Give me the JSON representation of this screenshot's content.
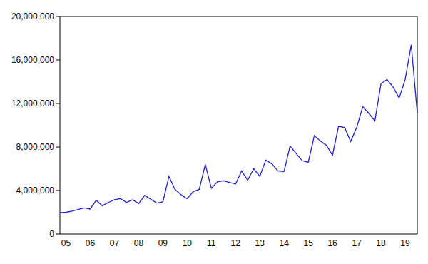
{
  "chart_data": {
    "type": "line",
    "categories": [
      null,
      "05",
      null,
      null,
      null,
      "06",
      null,
      null,
      null,
      "07",
      null,
      null,
      null,
      "08",
      null,
      null,
      null,
      "09",
      null,
      null,
      null,
      "10",
      null,
      null,
      null,
      "11",
      null,
      null,
      null,
      "12",
      null,
      null,
      null,
      "13",
      null,
      null,
      null,
      "14",
      null,
      null,
      null,
      "15",
      null,
      null,
      null,
      "16",
      null,
      null,
      null,
      "17",
      null,
      null,
      null,
      "18",
      null,
      null,
      null,
      "19",
      null,
      null
    ],
    "values": [
      1950000,
      2000000,
      2100000,
      2250000,
      2400000,
      2300000,
      3100000,
      2600000,
      2900000,
      3150000,
      3250000,
      2900000,
      3150000,
      2800000,
      3550000,
      3200000,
      2850000,
      2950000,
      5300000,
      4100000,
      3600000,
      3250000,
      3900000,
      4100000,
      6400000,
      4200000,
      4800000,
      4900000,
      4750000,
      4600000,
      5800000,
      4950000,
      6000000,
      5300000,
      6800000,
      6450000,
      5800000,
      5750000,
      8100000,
      7400000,
      6750000,
      6600000,
      9050000,
      8550000,
      8150000,
      7250000,
      9900000,
      9800000,
      8500000,
      9800000,
      11700000,
      11100000,
      10400000,
      13800000,
      14200000,
      13500000,
      12500000,
      14200000,
      17400000,
      11100000
    ],
    "color": "#1f1fd0",
    "ylim": [
      0,
      20000000
    ],
    "yticks": [
      0,
      {
        "value": 4000000,
        "label": "4,000,000"
      },
      {
        "value": 8000000,
        "label": "8,000,000"
      },
      {
        "value": 12000000,
        "label": "12,000,000"
      },
      {
        "value": 16000000,
        "label": "16,000,000"
      },
      {
        "value": 20000000,
        "label": "20,000,000"
      }
    ],
    "grid": false
  }
}
